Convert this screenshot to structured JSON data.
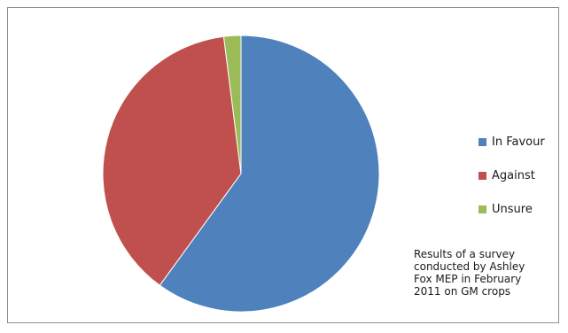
{
  "chart_data": {
    "type": "pie",
    "categories": [
      "In Favour",
      "Against",
      "Unsure"
    ],
    "values": [
      60,
      38,
      2
    ],
    "colors": [
      "#4f81bd",
      "#c0504d",
      "#9bbb59"
    ],
    "title": "",
    "legend_position": "right"
  },
  "note": {
    "lines": [
      "Results of a survey",
      "conducted by Ashley",
      "Fox MEP in February",
      "2011 on GM crops"
    ]
  }
}
